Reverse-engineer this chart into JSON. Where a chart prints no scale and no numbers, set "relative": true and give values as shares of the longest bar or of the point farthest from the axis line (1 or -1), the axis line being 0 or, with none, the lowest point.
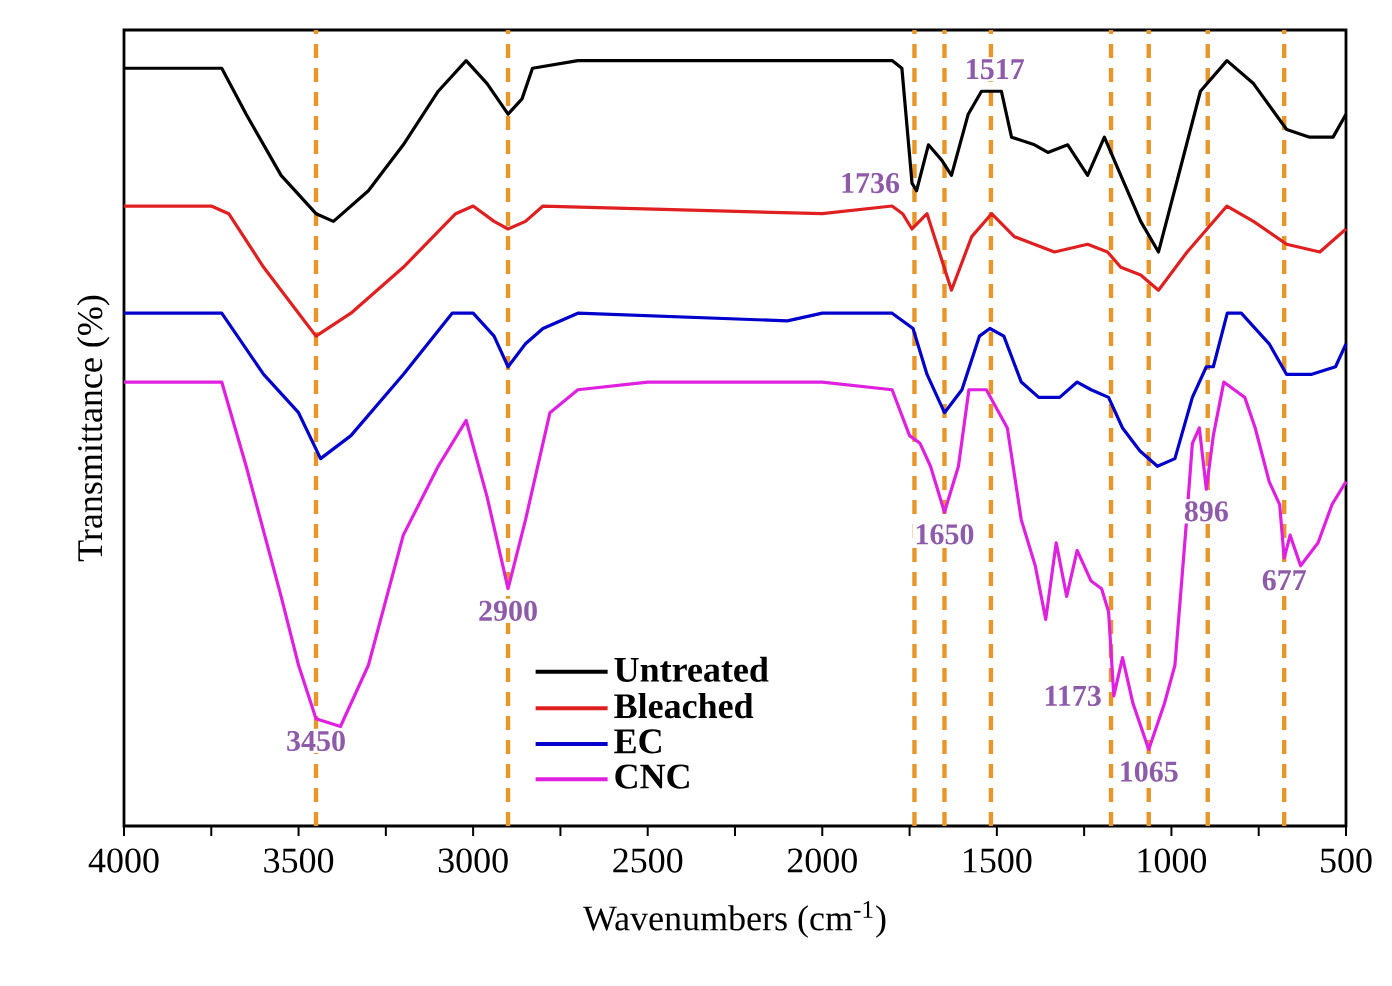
{
  "chart_data": {
    "type": "line",
    "relative": true,
    "xlabel": "Wavenumbers (cm$^{-1}$)",
    "ylabel": "Transmittance (%)",
    "xlim": [
      4000,
      500
    ],
    "xticks": [
      4000,
      {
        "value": 3750,
        "label": null
      },
      3500,
      {
        "value": 3250,
        "label": null
      },
      3000,
      {
        "value": 2750,
        "label": null
      },
      2500,
      {
        "value": 2250,
        "label": null
      },
      2000,
      {
        "value": 1750,
        "label": null
      },
      1500,
      {
        "value": 1250,
        "label": null
      },
      1000,
      {
        "value": 750,
        "label": null
      },
      500
    ],
    "tick_labels": "x",
    "legend": "bottom",
    "marker": "none",
    "line_style": "solid",
    "grid": false,
    "series": [
      {
        "name": "Untreated",
        "color": "#000000",
        "x": [
          4000,
          3800,
          3720,
          3650,
          3550,
          3450,
          3400,
          3300,
          3200,
          3100,
          3020,
          2960,
          2900,
          2860,
          2830,
          2700,
          2000,
          1800,
          1772,
          1743,
          1730,
          1696,
          1658,
          1630,
          1582,
          1544,
          1506,
          1487,
          1458,
          1392,
          1354,
          1297,
          1240,
          1192,
          1145,
          1088,
          1037,
          974,
          917,
          841,
          765,
          670,
          604,
          537,
          500
        ],
        "values": [
          0.99,
          0.99,
          0.99,
          0.93,
          0.85,
          0.8,
          0.79,
          0.83,
          0.89,
          0.96,
          1,
          0.97,
          0.93,
          0.95,
          0.99,
          1,
          1,
          1,
          0.99,
          0.84,
          0.83,
          0.89,
          0.87,
          0.85,
          0.93,
          0.96,
          0.96,
          0.96,
          0.9,
          0.89,
          0.88,
          0.89,
          0.85,
          0.9,
          0.85,
          0.79,
          0.75,
          0.86,
          0.96,
          1,
          0.97,
          0.91,
          0.9,
          0.9,
          0.93
        ]
      },
      {
        "name": "Bleached",
        "color": "#e02020",
        "x": [
          4000,
          3750,
          3700,
          3600,
          3500,
          3450,
          3350,
          3200,
          3050,
          3000,
          2940,
          2900,
          2850,
          2800,
          2000,
          1800,
          1770,
          1743,
          1700,
          1630,
          1572,
          1515,
          1450,
          1335,
          1240,
          1183,
          1145,
          1088,
          1037,
          955,
          898,
          841,
          765,
          670,
          575,
          500
        ],
        "values": [
          0.81,
          0.81,
          0.8,
          0.73,
          0.67,
          0.64,
          0.67,
          0.73,
          0.8,
          0.81,
          0.79,
          0.78,
          0.79,
          0.81,
          0.8,
          0.81,
          0.8,
          0.78,
          0.8,
          0.7,
          0.77,
          0.8,
          0.77,
          0.75,
          0.76,
          0.75,
          0.73,
          0.72,
          0.7,
          0.75,
          0.78,
          0.81,
          0.79,
          0.76,
          0.75,
          0.78
        ]
      },
      {
        "name": "EC",
        "color": "#0000cc",
        "x": [
          4000,
          3720,
          3600,
          3500,
          3437,
          3350,
          3200,
          3060,
          3000,
          2940,
          2900,
          2850,
          2800,
          2700,
          2100,
          2000,
          1800,
          1740,
          1700,
          1650,
          1600,
          1550,
          1520,
          1480,
          1430,
          1380,
          1320,
          1270,
          1230,
          1180,
          1140,
          1090,
          1040,
          990,
          940,
          900,
          880,
          840,
          800,
          720,
          670,
          600,
          530,
          500
        ],
        "values": [
          0.67,
          0.67,
          0.59,
          0.54,
          0.48,
          0.51,
          0.59,
          0.67,
          0.67,
          0.64,
          0.6,
          0.63,
          0.65,
          0.67,
          0.66,
          0.67,
          0.67,
          0.65,
          0.59,
          0.54,
          0.57,
          0.64,
          0.65,
          0.64,
          0.58,
          0.56,
          0.56,
          0.58,
          0.57,
          0.56,
          0.52,
          0.49,
          0.47,
          0.48,
          0.56,
          0.6,
          0.6,
          0.67,
          0.67,
          0.63,
          0.59,
          0.59,
          0.6,
          0.63
        ]
      },
      {
        "name": "CNC",
        "color": "#e020e0",
        "x": [
          4000,
          3720,
          3650,
          3550,
          3500,
          3450,
          3380,
          3300,
          3200,
          3100,
          3020,
          2960,
          2900,
          2850,
          2780,
          2700,
          2500,
          2200,
          2000,
          1800,
          1750,
          1720,
          1690,
          1650,
          1610,
          1580,
          1530,
          1470,
          1430,
          1390,
          1360,
          1330,
          1300,
          1270,
          1230,
          1200,
          1180,
          1165,
          1140,
          1110,
          1065,
          1020,
          990,
          960,
          940,
          920,
          900,
          880,
          850,
          820,
          790,
          760,
          720,
          690,
          677,
          660,
          630,
          580,
          540,
          500
        ],
        "values": [
          0.58,
          0.58,
          0.47,
          0.3,
          0.21,
          0.14,
          0.13,
          0.21,
          0.38,
          0.47,
          0.53,
          0.43,
          0.31,
          0.4,
          0.54,
          0.57,
          0.58,
          0.58,
          0.58,
          0.57,
          0.51,
          0.5,
          0.47,
          0.41,
          0.47,
          0.57,
          0.57,
          0.52,
          0.4,
          0.34,
          0.27,
          0.37,
          0.3,
          0.36,
          0.32,
          0.31,
          0.28,
          0.17,
          0.22,
          0.16,
          0.1,
          0.16,
          0.21,
          0.38,
          0.5,
          0.52,
          0.44,
          0.51,
          0.58,
          0.57,
          0.56,
          0.52,
          0.45,
          0.42,
          0.35,
          0.38,
          0.34,
          0.37,
          0.42,
          0.45
        ]
      }
    ],
    "ref_lines": [
      {
        "axis": "x",
        "value": 3450,
        "color": "#e8962a",
        "line_style": "dashed"
      },
      {
        "axis": "x",
        "value": 2900,
        "color": "#e8962a",
        "line_style": "dashed"
      },
      {
        "axis": "x",
        "value": 1736,
        "color": "#e8962a",
        "line_style": "dashed"
      },
      {
        "axis": "x",
        "value": 1650,
        "color": "#e8962a",
        "line_style": "dashed"
      },
      {
        "axis": "x",
        "value": 1517,
        "color": "#e8962a",
        "line_style": "dashed"
      },
      {
        "axis": "x",
        "value": 1173,
        "color": "#e8962a",
        "line_style": "dashed"
      },
      {
        "axis": "x",
        "value": 1065,
        "color": "#e8962a",
        "line_style": "dashed"
      },
      {
        "axis": "x",
        "value": 896,
        "color": "#e8962a",
        "line_style": "dashed"
      },
      {
        "axis": "x",
        "value": 677,
        "color": "#e8962a",
        "line_style": "dashed"
      }
    ],
    "annotations": [
      {
        "text": "3450",
        "x": 3450,
        "y": 0.14
      },
      {
        "text": "2900",
        "x": 2900,
        "y": 0.31
      },
      {
        "text": "1736",
        "x": 1743,
        "y": 0.84
      },
      {
        "text": "1517",
        "x": 1506,
        "y": 0.96
      },
      {
        "text": "1650",
        "x": 1650,
        "y": 0.41
      },
      {
        "text": "1173",
        "x": 1165,
        "y": 0.17
      },
      {
        "text": "1065",
        "x": 1065,
        "y": 0.1
      },
      {
        "text": "896",
        "x": 900,
        "y": 0.44
      },
      {
        "text": "677",
        "x": 677,
        "y": 0.35
      }
    ]
  }
}
